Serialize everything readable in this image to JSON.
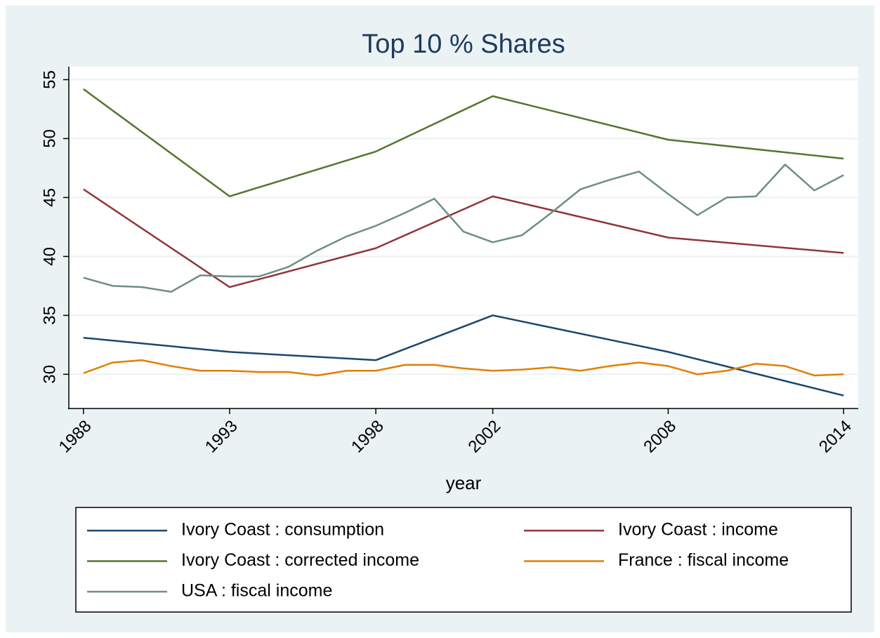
{
  "chart_data": {
    "type": "line",
    "title": "Top 10 % Shares",
    "x_label": "year",
    "xlim": [
      1987.5,
      2014.5
    ],
    "xticks": [
      1988,
      1993,
      1998,
      2002,
      2008,
      2014
    ],
    "ylim": [
      27.1,
      56.1
    ],
    "yticks": [
      30,
      35,
      40,
      45,
      50,
      55
    ],
    "grid": true,
    "legend": "bottom",
    "series": [
      {
        "name": "Ivory Coast : consumption",
        "color": "#1a476f",
        "x": [
          1988,
          1993,
          1998,
          2002,
          2008,
          2014
        ],
        "values": [
          33.1,
          31.9,
          31.2,
          35.0,
          31.9,
          28.2
        ]
      },
      {
        "name": "Ivory Coast : income",
        "color": "#90353b",
        "x": [
          1988,
          1993,
          1998,
          2002,
          2008,
          2014
        ],
        "values": [
          45.7,
          37.4,
          40.7,
          45.1,
          41.6,
          40.3
        ]
      },
      {
        "name": "Ivory Coast : corrected income",
        "color": "#55752f",
        "x": [
          1988,
          1993,
          1998,
          2002,
          2008,
          2014
        ],
        "values": [
          54.2,
          45.1,
          48.9,
          53.6,
          49.9,
          48.3
        ]
      },
      {
        "name": "France : fiscal income",
        "color": "#e37e00",
        "x": [
          1988,
          1989,
          1990,
          1991,
          1992,
          1993,
          1994,
          1995,
          1996,
          1997,
          1998,
          1999,
          2000,
          2001,
          2002,
          2003,
          2004,
          2005,
          2006,
          2007,
          2008,
          2009,
          2010,
          2011,
          2012,
          2013,
          2014
        ],
        "values": [
          30.1,
          31.0,
          31.2,
          30.7,
          30.3,
          30.3,
          30.2,
          30.2,
          29.9,
          30.3,
          30.3,
          30.8,
          30.8,
          30.5,
          30.3,
          30.4,
          30.6,
          30.3,
          30.7,
          31.0,
          30.7,
          30.0,
          30.3,
          30.9,
          30.7,
          29.9,
          30.0
        ]
      },
      {
        "name": "USA : fiscal income",
        "color": "#6e8e84",
        "x": [
          1988,
          1989,
          1990,
          1991,
          1992,
          1993,
          1994,
          1995,
          1996,
          1997,
          1998,
          1999,
          2000,
          2001,
          2002,
          2003,
          2004,
          2005,
          2006,
          2007,
          2008,
          2009,
          2010,
          2011,
          2012,
          2013,
          2014
        ],
        "values": [
          38.2,
          37.5,
          37.4,
          37.0,
          38.4,
          38.3,
          38.3,
          39.1,
          40.5,
          41.7,
          42.6,
          43.7,
          44.9,
          42.1,
          41.2,
          41.8,
          43.7,
          45.7,
          46.5,
          47.2,
          45.3,
          43.5,
          45.0,
          45.1,
          47.8,
          45.6,
          46.9
        ]
      }
    ]
  }
}
